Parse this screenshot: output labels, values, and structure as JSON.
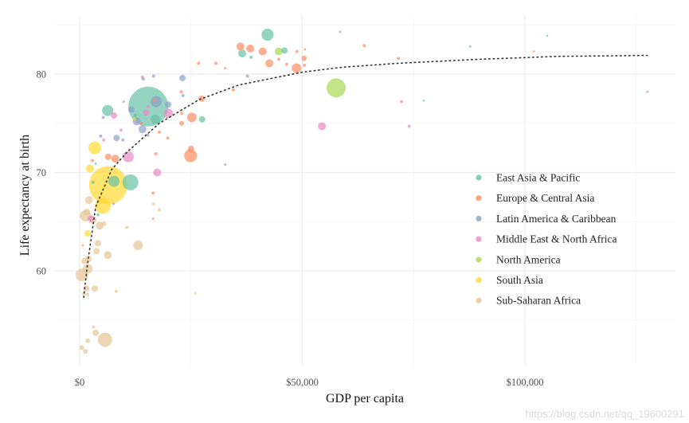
{
  "chart_data": {
    "type": "scatter",
    "xlabel": "GDP per capita",
    "ylabel": "Life expectancy at birth",
    "xlim": [
      -5500,
      133500
    ],
    "ylim": [
      50.5,
      86
    ],
    "x_ticks": [
      {
        "value": 0,
        "label": "$0"
      },
      {
        "value": 50000,
        "label": "$50,000"
      },
      {
        "value": 100000,
        "label": "$100,000"
      }
    ],
    "y_ticks": [
      {
        "value": 60,
        "label": "60"
      },
      {
        "value": 70,
        "label": "70"
      },
      {
        "value": 80,
        "label": "80"
      }
    ],
    "grid": true,
    "legend_position": "right-inside",
    "point_fields": [
      "gdp_per_capita",
      "life_expectancy",
      "population_millions"
    ],
    "series": [
      {
        "name": "East Asia & Pacific",
        "color": "#66c2a5",
        "points": [
          [
            15400,
            76.7,
            1390
          ],
          [
            11400,
            69.0,
            223
          ],
          [
            7700,
            69.1,
            109
          ],
          [
            6300,
            76.3,
            109
          ],
          [
            17000,
            75.4,
            80
          ],
          [
            27500,
            75.4,
            36
          ],
          [
            42200,
            84.0,
            127
          ],
          [
            36500,
            82.1,
            56
          ],
          [
            46000,
            82.4,
            36
          ],
          [
            38500,
            81.7,
            9
          ],
          [
            58500,
            84.3,
            5
          ],
          [
            105000,
            83.9,
            4
          ],
          [
            87700,
            82.8,
            5
          ],
          [
            77300,
            77.3,
            4
          ],
          [
            3000,
            69.0,
            9
          ],
          [
            3600,
            70.9,
            5
          ],
          [
            4100,
            65.7,
            9
          ],
          [
            12500,
            75.8,
            9
          ]
        ]
      },
      {
        "name": "Europe & Central Asia",
        "color": "#fc8d62",
        "points": [
          [
            24900,
            71.7,
            145
          ],
          [
            25200,
            75.6,
            80
          ],
          [
            27400,
            77.5,
            36
          ],
          [
            36100,
            82.8,
            56
          ],
          [
            38300,
            82.6,
            56
          ],
          [
            41100,
            82.3,
            56
          ],
          [
            42600,
            81.1,
            56
          ],
          [
            48700,
            80.6,
            82
          ],
          [
            50400,
            81.6,
            25
          ],
          [
            50500,
            80.9,
            9
          ],
          [
            48800,
            82.3,
            9
          ],
          [
            50600,
            82.5,
            5
          ],
          [
            46500,
            81.0,
            9
          ],
          [
            44700,
            81.5,
            9
          ],
          [
            63900,
            82.9,
            9
          ],
          [
            71600,
            81.6,
            9
          ],
          [
            102000,
            82.3,
            4
          ],
          [
            26700,
            81.1,
            9
          ],
          [
            30600,
            81.1,
            9
          ],
          [
            32700,
            80.6,
            5
          ],
          [
            34500,
            78.4,
            9
          ],
          [
            17900,
            74.1,
            9
          ],
          [
            17100,
            71.9,
            9
          ],
          [
            25000,
            72.4,
            36
          ],
          [
            19800,
            73.5,
            9
          ],
          [
            16500,
            67.9,
            9
          ],
          [
            13800,
            75.0,
            9
          ],
          [
            22900,
            75.0,
            20
          ],
          [
            22900,
            76.0,
            9
          ],
          [
            8000,
            71.4,
            56
          ],
          [
            6400,
            71.6,
            36
          ],
          [
            2900,
            71.2,
            9
          ],
          [
            16700,
            77.3,
            9
          ],
          [
            16500,
            65.3,
            5
          ],
          [
            22800,
            78.2,
            9
          ]
        ]
      },
      {
        "name": "Latin America & Caribbean",
        "color": "#8da0cb",
        "points": [
          [
            17200,
            77.2,
            109
          ],
          [
            14100,
            74.4,
            56
          ],
          [
            12800,
            75.2,
            56
          ],
          [
            11600,
            76.4,
            36
          ],
          [
            19900,
            76.9,
            36
          ],
          [
            23100,
            79.6,
            36
          ],
          [
            16600,
            79.8,
            9
          ],
          [
            14300,
            79.5,
            9
          ],
          [
            8300,
            73.5,
            36
          ],
          [
            9700,
            73.3,
            9
          ],
          [
            5300,
            75.6,
            9
          ],
          [
            4700,
            73.7,
            9
          ],
          [
            32700,
            70.8,
            5
          ],
          [
            37700,
            79.8,
            9
          ],
          [
            7600,
            66.8,
            5
          ],
          [
            15300,
            73.8,
            9
          ],
          [
            9900,
            77.2,
            5
          ],
          [
            23200,
            77.8,
            9
          ]
        ]
      },
      {
        "name": "Middle East & North Africa",
        "color": "#e78ac3",
        "points": [
          [
            19900,
            76.0,
            80
          ],
          [
            10900,
            71.6,
            109
          ],
          [
            17400,
            70.0,
            56
          ],
          [
            7700,
            75.8,
            36
          ],
          [
            14900,
            76.1,
            36
          ],
          [
            2500,
            65.3,
            36
          ],
          [
            54400,
            74.7,
            56
          ],
          [
            72300,
            77.2,
            9
          ],
          [
            74000,
            74.7,
            9
          ],
          [
            127500,
            78.2,
            5
          ],
          [
            14100,
            79.7,
            9
          ],
          [
            9300,
            74.3,
            9
          ],
          [
            5400,
            73.3,
            9
          ],
          [
            15400,
            76.7,
            9
          ]
        ]
      },
      {
        "name": "North America",
        "color": "#a6d854",
        "points": [
          [
            57600,
            78.6,
            320
          ],
          [
            44700,
            82.3,
            56
          ]
        ]
      },
      {
        "name": "South Asia",
        "color": "#ffd92f",
        "points": [
          [
            6400,
            68.7,
            1280
          ],
          [
            5200,
            66.6,
            223
          ],
          [
            3400,
            72.5,
            142
          ],
          [
            2300,
            70.4,
            56
          ],
          [
            1800,
            63.8,
            36
          ],
          [
            12300,
            75.4,
            9
          ]
        ]
      },
      {
        "name": "Sub-Saharan Africa",
        "color": "#e5c494",
        "points": [
          [
            5700,
            53.0,
            180
          ],
          [
            500,
            59.6,
            142
          ],
          [
            1800,
            60.2,
            80
          ],
          [
            1300,
            65.6,
            109
          ],
          [
            2900,
            65.2,
            56
          ],
          [
            2100,
            67.2,
            56
          ],
          [
            1600,
            66.0,
            36
          ],
          [
            4500,
            64.6,
            56
          ],
          [
            4100,
            62.8,
            36
          ],
          [
            3800,
            62.0,
            36
          ],
          [
            6300,
            61.6,
            56
          ],
          [
            13100,
            62.6,
            80
          ],
          [
            1100,
            61.0,
            36
          ],
          [
            2000,
            61.2,
            36
          ],
          [
            1500,
            58.2,
            36
          ],
          [
            3400,
            58.2,
            36
          ],
          [
            900,
            57.7,
            9
          ],
          [
            1800,
            57.6,
            9
          ],
          [
            3600,
            53.7,
            36
          ],
          [
            1800,
            52.9,
            20
          ],
          [
            500,
            52.2,
            20
          ],
          [
            1300,
            51.8,
            20
          ],
          [
            3100,
            54.3,
            9
          ],
          [
            8200,
            57.9,
            9
          ],
          [
            26000,
            57.7,
            5
          ],
          [
            10600,
            64.4,
            9
          ],
          [
            16600,
            66.8,
            9
          ],
          [
            17900,
            66.2,
            9
          ],
          [
            5500,
            64.8,
            20
          ],
          [
            700,
            62.6,
            9
          ]
        ]
      }
    ],
    "trend_line": {
      "style": "dotted",
      "color": "#333333",
      "points": [
        [
          900,
          57.3
        ],
        [
          1800,
          60.8
        ],
        [
          3600,
          66.5
        ],
        [
          7200,
          70.3
        ],
        [
          10700,
          72.1
        ],
        [
          17900,
          75.0
        ],
        [
          26800,
          77.4
        ],
        [
          35800,
          78.9
        ],
        [
          50100,
          80.2
        ],
        [
          59000,
          80.7
        ],
        [
          71600,
          81.1
        ],
        [
          89400,
          81.5
        ],
        [
          107300,
          81.8
        ],
        [
          127500,
          81.9
        ]
      ]
    }
  },
  "watermark": "https://blog.csdn.net/qq_19600291"
}
